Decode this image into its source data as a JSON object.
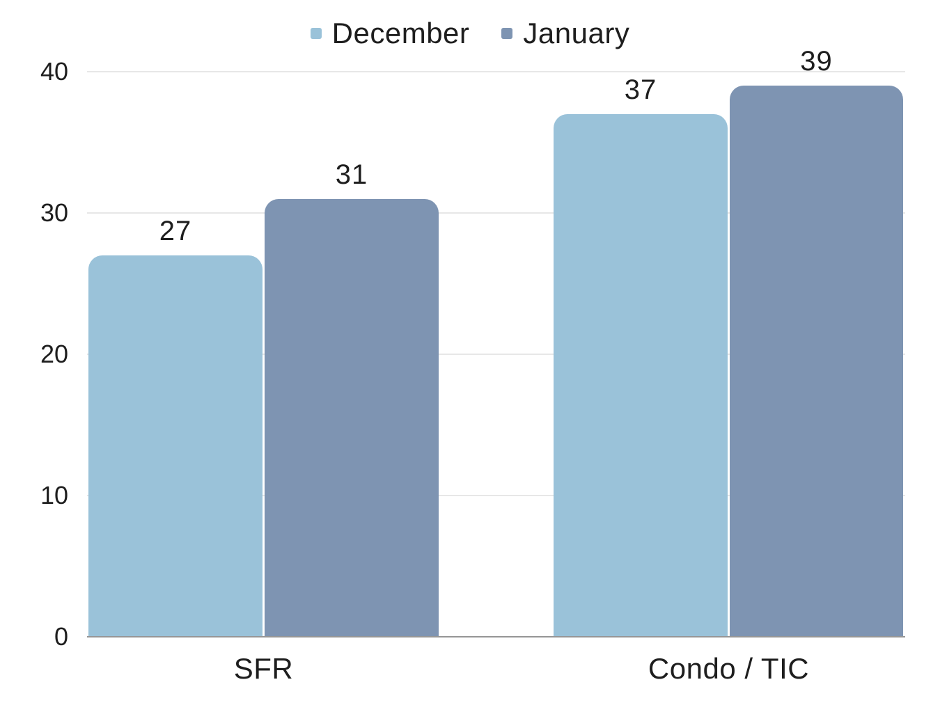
{
  "chart_data": {
    "type": "bar",
    "categories": [
      "SFR",
      "Condo / TIC"
    ],
    "series": [
      {
        "name": "December",
        "color": "#9AC2D9",
        "values": [
          27,
          37
        ]
      },
      {
        "name": "January",
        "color": "#7E94B2",
        "values": [
          31,
          39
        ]
      }
    ],
    "y_ticks": [
      "0",
      "10",
      "20",
      "30",
      "40"
    ],
    "y_tick_values": [
      0,
      10,
      20,
      30,
      40
    ],
    "ylim": [
      0,
      40
    ],
    "grid": true,
    "data_labels": true,
    "legend_position": "top-center",
    "value_labels": [
      "27",
      "31",
      "37",
      "39"
    ]
  },
  "colors": {
    "background": "#FFFFFF",
    "gridline": "#E7E7E7",
    "axis_line": "#969696",
    "text": "#1E1E1E"
  }
}
